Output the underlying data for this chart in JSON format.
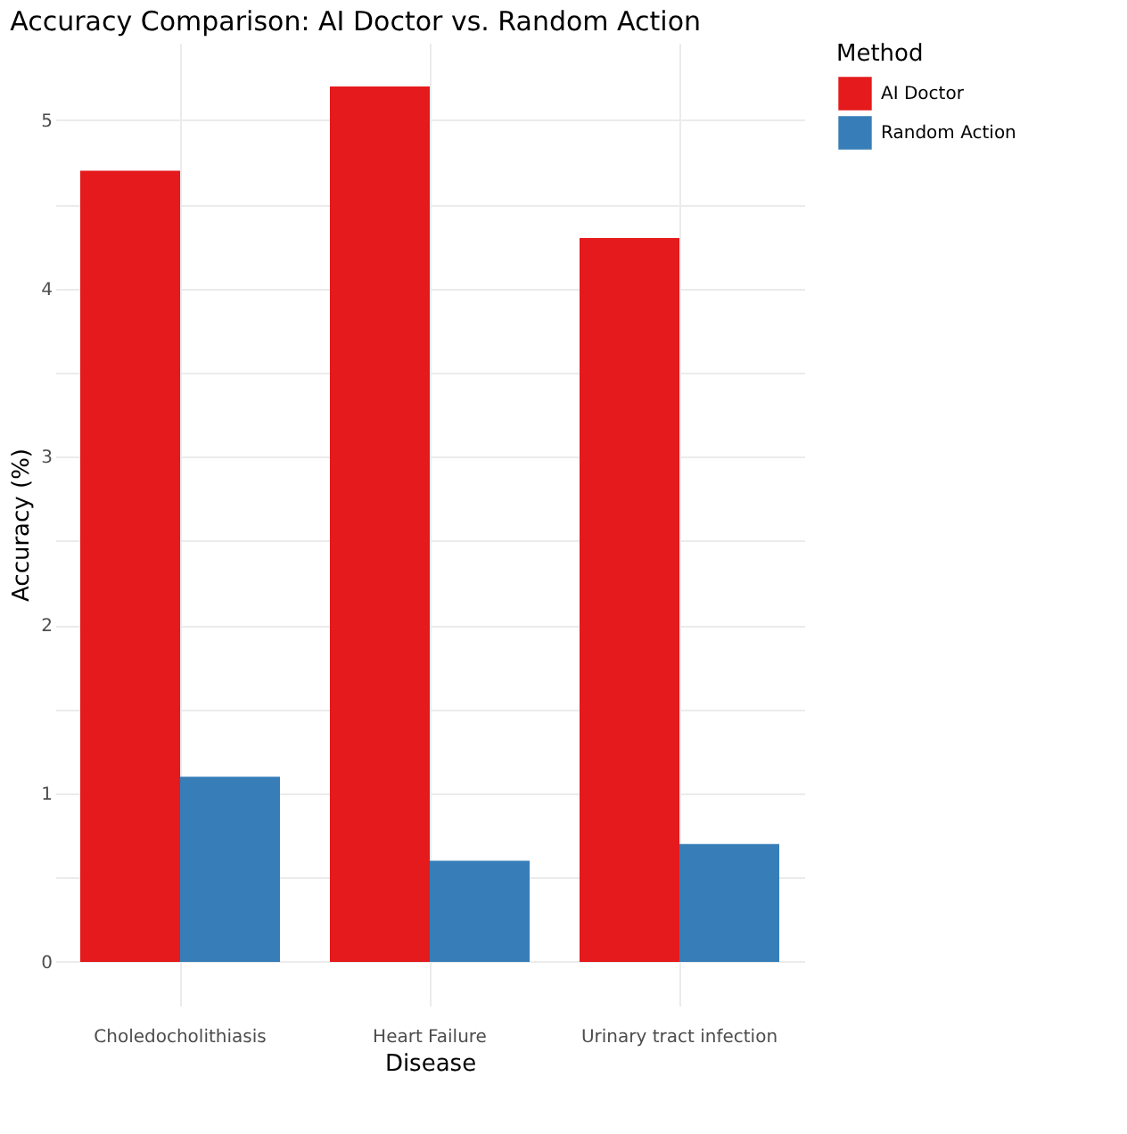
{
  "chart_data": {
    "type": "bar",
    "title": "Accuracy Comparison: AI Doctor vs. Random Action",
    "xlabel": "Disease",
    "ylabel": "Accuracy (%)",
    "legend_title": "Method",
    "categories": [
      "Choledocholithiasis",
      "Heart Failure",
      "Urinary tract infection"
    ],
    "series": [
      {
        "name": "AI Doctor",
        "color": "#e41a1c",
        "values": [
          4.7,
          5.2,
          4.3
        ]
      },
      {
        "name": "Random Action",
        "color": "#377eb8",
        "values": [
          1.1,
          0.6,
          0.7
        ]
      }
    ],
    "ylim": [
      -0.26,
      5.46
    ],
    "yticks": [
      0,
      {
        "value": 0.5,
        "label": null
      },
      1,
      {
        "value": 1.5,
        "label": null
      },
      2,
      {
        "value": 2.5,
        "label": null
      },
      3,
      {
        "value": 3.5,
        "label": null
      },
      4,
      {
        "value": 4.5,
        "label": null
      },
      5
    ],
    "grid": true,
    "legend": "right"
  }
}
